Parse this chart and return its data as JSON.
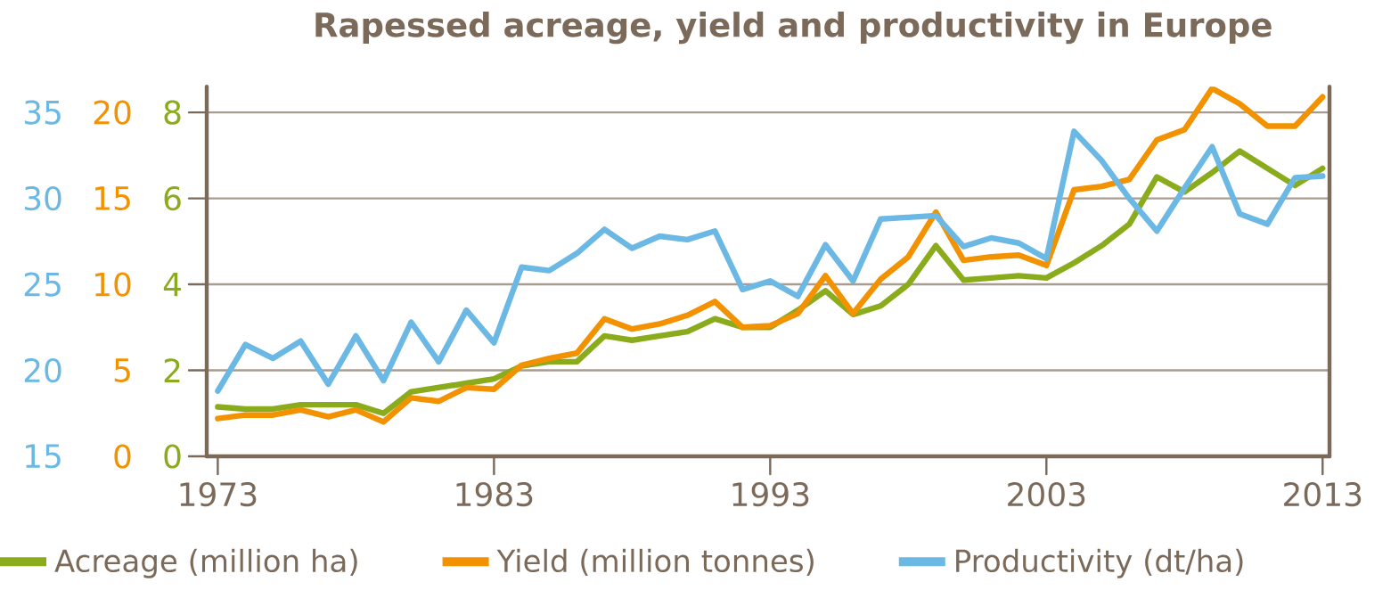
{
  "chart_data": {
    "type": "line",
    "title": "Rapessed acreage, yield and productivity in Europe",
    "x": [
      1973,
      1974,
      1975,
      1976,
      1977,
      1978,
      1979,
      1980,
      1981,
      1982,
      1983,
      1984,
      1985,
      1986,
      1987,
      1988,
      1989,
      1990,
      1991,
      1992,
      1993,
      1994,
      1995,
      1996,
      1997,
      1998,
      1999,
      2000,
      2001,
      2002,
      2003,
      2004,
      2005,
      2006,
      2007,
      2008,
      2009,
      2010,
      2011,
      2012,
      2013
    ],
    "xlim": [
      1972.6,
      2013.25
    ],
    "xticks": [
      1973,
      1983,
      1993,
      2003,
      2013
    ],
    "ylim": [
      0,
      8.6
    ],
    "yticks": [
      0,
      2,
      4,
      6,
      8
    ],
    "y2lim": [
      0,
      21.5
    ],
    "y2ticks": [
      0,
      5,
      10,
      15,
      20
    ],
    "y3lim": [
      15,
      36.5
    ],
    "y3ticks": [
      15,
      20,
      25,
      30,
      35
    ],
    "grid": "y",
    "legend": "bottom",
    "marker": "none",
    "line_style": "solid",
    "series": [
      {
        "name": "Acreage (million ha)",
        "color": "#8aab1b",
        "axis": "y",
        "values": [
          1.15,
          1.1,
          1.1,
          1.2,
          1.2,
          1.2,
          1.0,
          1.5,
          1.6,
          1.7,
          1.8,
          2.1,
          2.2,
          2.2,
          2.8,
          2.7,
          2.8,
          2.9,
          3.2,
          3.0,
          3.0,
          3.4,
          3.85,
          3.3,
          3.5,
          4.0,
          4.9,
          4.1,
          4.15,
          4.2,
          4.15,
          4.5,
          4.9,
          5.4,
          6.5,
          6.15,
          6.6,
          7.1,
          6.7,
          6.3,
          6.7
        ]
      },
      {
        "name": "Yield (million tonnes)",
        "color": "#f39200",
        "axis": "y2",
        "values": [
          2.2,
          2.4,
          2.4,
          2.7,
          2.3,
          2.7,
          2.0,
          3.4,
          3.2,
          4.0,
          3.9,
          5.3,
          5.7,
          6.0,
          8.0,
          7.4,
          7.7,
          8.2,
          9.0,
          7.5,
          7.6,
          8.3,
          10.5,
          8.3,
          10.3,
          11.6,
          14.2,
          11.4,
          11.6,
          11.7,
          11.1,
          15.5,
          15.7,
          16.1,
          18.4,
          19.0,
          21.4,
          20.5,
          19.2,
          19.2,
          20.9
        ]
      },
      {
        "name": "Productivity (dt/ha)",
        "color": "#6bb8e4",
        "axis": "y3",
        "values": [
          18.8,
          21.5,
          20.7,
          21.7,
          19.2,
          22.0,
          19.4,
          22.8,
          20.5,
          23.5,
          21.6,
          26.0,
          25.8,
          26.8,
          28.2,
          27.1,
          27.8,
          27.6,
          28.1,
          24.7,
          25.2,
          24.3,
          27.3,
          25.2,
          28.8,
          28.9,
          29.0,
          27.2,
          27.7,
          27.4,
          26.5,
          33.9,
          32.2,
          30.0,
          28.1,
          30.6,
          33.0,
          29.1,
          28.5,
          31.2,
          31.3
        ]
      }
    ]
  }
}
